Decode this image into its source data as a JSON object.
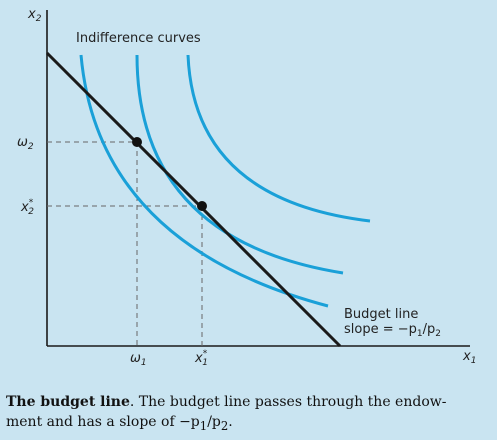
{
  "axes": {
    "y_label": "x",
    "y_sub": "2",
    "x_label": "x",
    "x_sub": "1"
  },
  "labels": {
    "indifference_curves": "Indifference curves",
    "budget_line_1": "Budget line",
    "budget_line_2": "slope = −p",
    "budget_line_sub1": "1",
    "budget_line_slash": "/p",
    "budget_line_sub2": "2",
    "omega2": "ω",
    "omega2_sub": "2",
    "x2star": "x",
    "x2star_sup": "*",
    "x2star_sub": "2",
    "omega1": "ω",
    "omega1_sub": "1",
    "x1star": "x",
    "x1star_sup": "*",
    "x1star_sub": "1"
  },
  "caption": {
    "title": "The budget line",
    "body_line1": ". The budget line passes through the endow-",
    "body_line2": "ment and has a slope of −p",
    "body_sub1": "1",
    "body_slash": "/p",
    "body_sub2": "2",
    "body_end": "."
  },
  "colors": {
    "curve": "#1aa0d8",
    "line": "#1a1a1a",
    "background": "#c9e4f1"
  }
}
